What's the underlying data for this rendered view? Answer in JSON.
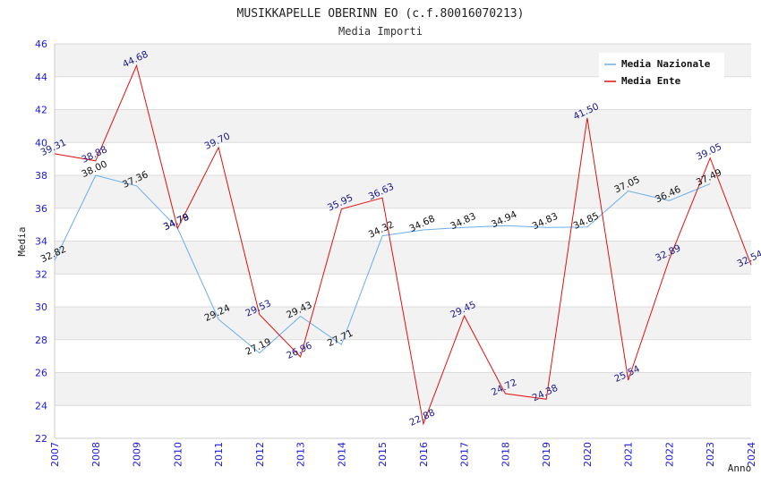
{
  "chart_data": {
    "type": "line",
    "title": "MUSIKKAPELLE OBERINN EO (c.f.80016070213)",
    "subtitle": "Media Importi",
    "xlabel": "Anno",
    "ylabel": "Media",
    "ylim": [
      22,
      46
    ],
    "yticks": [
      "22",
      "24",
      "26",
      "28",
      "30",
      "32",
      "34",
      "36",
      "38",
      "40",
      "42",
      "44",
      "46"
    ],
    "categories": [
      "2007",
      "2008",
      "2009",
      "2010",
      "2011",
      "2012",
      "2013",
      "2014",
      "2015",
      "2016",
      "2017",
      "2018",
      "2019",
      "2020",
      "2021",
      "2022",
      "2023",
      "2024"
    ],
    "legend_position": "top-right",
    "series": [
      {
        "name": "Media Nazionale",
        "color": "#6aaeea",
        "label_color": "#111111",
        "values": [
          32.82,
          38.0,
          37.36,
          34.79,
          29.24,
          27.19,
          29.43,
          27.71,
          34.32,
          34.68,
          34.83,
          34.94,
          34.83,
          34.85,
          37.05,
          36.46,
          37.49,
          null
        ],
        "labels": [
          "32.82",
          "38.00",
          "37.36",
          "34.79",
          "29.24",
          "27.19",
          "29.43",
          "27.71",
          "34.32",
          "34.68",
          "34.83",
          "34.94",
          "34.83",
          "34.85",
          "37.05",
          "36.46",
          "37.49",
          ""
        ]
      },
      {
        "name": "Media Ente",
        "color": "#e01010",
        "label_color": "#1a1a8c",
        "values": [
          39.31,
          38.88,
          44.68,
          34.78,
          39.7,
          29.53,
          26.96,
          35.95,
          36.63,
          22.88,
          29.45,
          24.72,
          24.38,
          41.5,
          25.54,
          32.89,
          39.05,
          32.54
        ],
        "labels": [
          "39.31",
          "38.88",
          "44.68",
          "34.78",
          "39.70",
          "29.53",
          "26.96",
          "35.95",
          "36.63",
          "22.88",
          "29.45",
          "24.72",
          "24.38",
          "41.50",
          "25.54",
          "32.89",
          "39.05",
          "32.54"
        ]
      }
    ]
  }
}
